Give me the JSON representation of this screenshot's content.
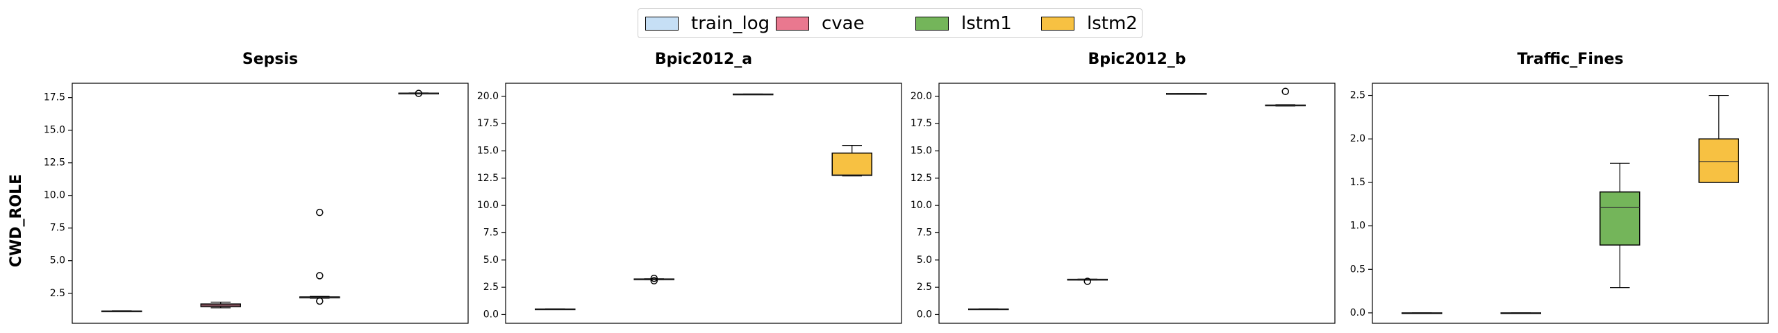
{
  "legend": [
    {
      "label": "train_log",
      "color": "#c6dff5"
    },
    {
      "label": "cvae",
      "color": "#e9788f"
    },
    {
      "label": "lstm1",
      "color": "#74b55a"
    },
    {
      "label": "lstm2",
      "color": "#f7c142"
    }
  ],
  "ylabel": "CWD_ROLE",
  "chart_data": [
    {
      "type": "box",
      "title": "Sepsis",
      "ylim": [
        0.2,
        18.6
      ],
      "yticks": [
        2.5,
        5.0,
        7.5,
        10.0,
        12.5,
        15.0,
        17.5
      ],
      "ytick_labels": [
        "2.5",
        "5.0",
        "7.5",
        "10.0",
        "12.5",
        "15.0",
        "17.5"
      ],
      "series": [
        {
          "name": "train_log",
          "min": 1.08,
          "q1": 1.1,
          "median": 1.12,
          "q3": 1.14,
          "max": 1.16,
          "outliers": []
        },
        {
          "name": "cvae",
          "min": 1.38,
          "q1": 1.48,
          "median": 1.58,
          "q3": 1.68,
          "max": 1.82,
          "outliers": []
        },
        {
          "name": "lstm1",
          "min": 2.12,
          "q1": 2.15,
          "median": 2.18,
          "q3": 2.22,
          "max": 2.26,
          "outliers": [
            8.7,
            3.85,
            1.9
          ]
        },
        {
          "name": "lstm2",
          "min": 17.78,
          "q1": 17.8,
          "median": 17.82,
          "q3": 17.84,
          "max": 17.86,
          "outliers": [
            17.82
          ]
        }
      ]
    },
    {
      "type": "box",
      "title": "Bpic2012_a",
      "ylim": [
        -0.8,
        21.2
      ],
      "yticks": [
        0.0,
        2.5,
        5.0,
        7.5,
        10.0,
        12.5,
        15.0,
        17.5,
        20.0
      ],
      "ytick_labels": [
        "0.0",
        "2.5",
        "5.0",
        "7.5",
        "10.0",
        "12.5",
        "15.0",
        "17.5",
        "20.0"
      ],
      "series": [
        {
          "name": "train_log",
          "min": 0.48,
          "q1": 0.49,
          "median": 0.5,
          "q3": 0.51,
          "max": 0.52,
          "outliers": []
        },
        {
          "name": "cvae",
          "min": 3.2,
          "q1": 3.22,
          "median": 3.24,
          "q3": 3.26,
          "max": 3.28,
          "outliers": [
            3.1,
            3.32
          ]
        },
        {
          "name": "lstm1",
          "min": 20.18,
          "q1": 20.19,
          "median": 20.2,
          "q3": 20.21,
          "max": 20.22,
          "outliers": []
        },
        {
          "name": "lstm2",
          "min": 12.7,
          "q1": 12.75,
          "median": 12.8,
          "q3": 14.8,
          "max": 15.5,
          "outliers": []
        }
      ]
    },
    {
      "type": "box",
      "title": "Bpic2012_b",
      "ylim": [
        -0.8,
        21.2
      ],
      "yticks": [
        0.0,
        2.5,
        5.0,
        7.5,
        10.0,
        12.5,
        15.0,
        17.5,
        20.0
      ],
      "ytick_labels": [
        "0.0",
        "2.5",
        "5.0",
        "7.5",
        "10.0",
        "12.5",
        "15.0",
        "17.5",
        "20.0"
      ],
      "series": [
        {
          "name": "train_log",
          "min": 0.48,
          "q1": 0.49,
          "median": 0.5,
          "q3": 0.51,
          "max": 0.52,
          "outliers": []
        },
        {
          "name": "cvae",
          "min": 3.17,
          "q1": 3.19,
          "median": 3.21,
          "q3": 3.23,
          "max": 3.25,
          "outliers": [
            3.05
          ]
        },
        {
          "name": "lstm1",
          "min": 20.23,
          "q1": 20.24,
          "median": 20.25,
          "q3": 20.26,
          "max": 20.27,
          "outliers": []
        },
        {
          "name": "lstm2",
          "min": 19.12,
          "q1": 19.14,
          "median": 19.17,
          "q3": 19.2,
          "max": 19.23,
          "outliers": [
            20.45
          ]
        }
      ]
    },
    {
      "type": "box",
      "title": "Traffic_Fines",
      "ylim": [
        -0.12,
        2.64
      ],
      "yticks": [
        0.0,
        0.5,
        1.0,
        1.5,
        2.0,
        2.5
      ],
      "ytick_labels": [
        "0.0",
        "0.5",
        "1.0",
        "1.5",
        "2.0",
        "2.5"
      ],
      "series": [
        {
          "name": "train_log",
          "min": 0.0,
          "q1": 0.0,
          "median": 0.0,
          "q3": 0.0,
          "max": 0.0,
          "outliers": []
        },
        {
          "name": "cvae",
          "min": 0.0,
          "q1": 0.0,
          "median": 0.0,
          "q3": 0.0,
          "max": 0.0,
          "outliers": []
        },
        {
          "name": "lstm1",
          "min": 0.29,
          "q1": 0.78,
          "median": 1.21,
          "q3": 1.39,
          "max": 1.72,
          "outliers": []
        },
        {
          "name": "lstm2",
          "min": 1.5,
          "q1": 1.5,
          "median": 1.74,
          "q3": 2.0,
          "max": 2.5,
          "outliers": []
        }
      ]
    }
  ]
}
